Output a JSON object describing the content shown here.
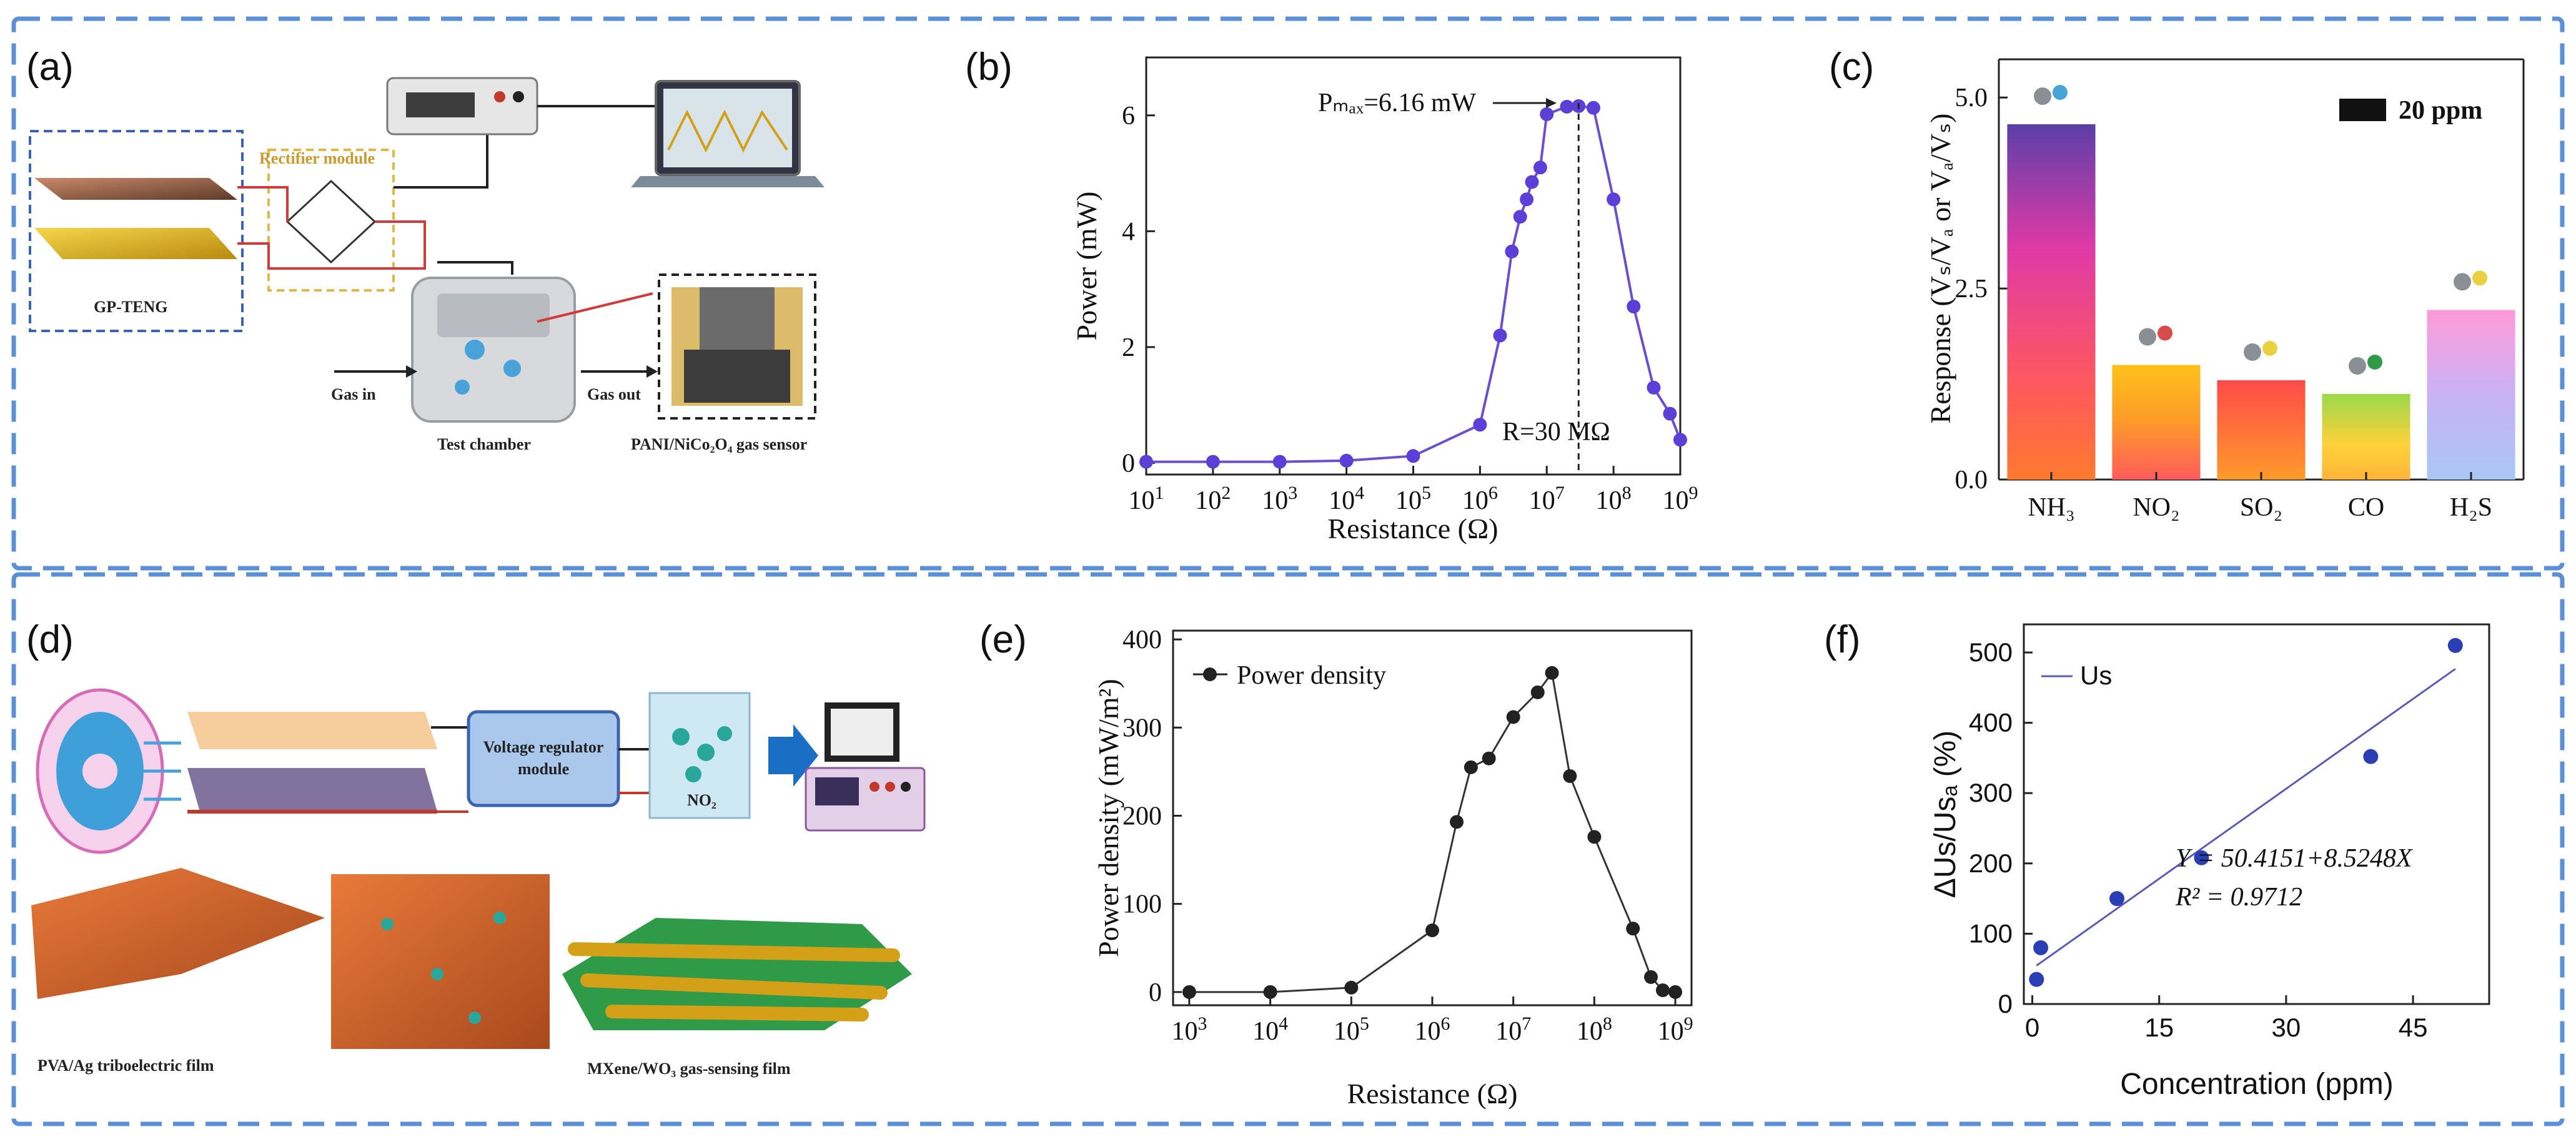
{
  "panels": {
    "a": {
      "label": "(a)",
      "texts": {
        "rectifier": "Rectifier module",
        "teng": "GP-TENG",
        "gas_in": "Gas in",
        "gas_out": "Gas out",
        "chamber": "Test chamber",
        "sensor": "PANI/NiCo₂O₄ gas sensor"
      }
    },
    "b": {
      "label": "(b)"
    },
    "c": {
      "label": "(c)"
    },
    "d": {
      "label": "(d)",
      "texts": {
        "regulator_1": "Voltage regulator",
        "regulator_2": "module",
        "no2": "NO₂",
        "pva": "PVA/Ag triboelectric film",
        "mxene": "MXene/WO₃ gas-sensing film"
      }
    },
    "e": {
      "label": "(e)"
    },
    "f": {
      "label": "(f)"
    }
  },
  "chart_data": [
    {
      "panel": "b",
      "type": "line",
      "xscale": "log",
      "x": [
        10,
        100,
        1000,
        10000,
        100000,
        1000000,
        2000000,
        3000000,
        4000000,
        5000000,
        6000000,
        8000000,
        10000000,
        20000000,
        30000000,
        50000000,
        100000000,
        200000000,
        400000000,
        700000000,
        1000000000
      ],
      "y": [
        0.02,
        0.02,
        0.02,
        0.04,
        0.12,
        0.66,
        2.2,
        3.65,
        4.25,
        4.55,
        4.85,
        5.1,
        6.02,
        6.15,
        6.16,
        6.13,
        4.55,
        2.7,
        1.3,
        0.85,
        0.4
      ],
      "xlabel": "Resistance (Ω)",
      "ylabel": "Power (mW)",
      "xticks": [
        "10^1",
        "10^2",
        "10^3",
        "10^4",
        "10^5",
        "10^6",
        "10^7",
        "10^8",
        "10^9"
      ],
      "yticks": [
        0,
        2,
        4,
        6
      ],
      "ylim": [
        -0.2,
        7
      ],
      "annotations": {
        "pmax": "Pₘₐₓ=6.16 mW",
        "r": "R=30 MΩ"
      }
    },
    {
      "panel": "c",
      "type": "bar",
      "categories": [
        "NH₃",
        "NO₂",
        "SO₂",
        "CO",
        "H₂S"
      ],
      "values": [
        4.65,
        1.5,
        1.3,
        1.12,
        2.22
      ],
      "ylabel": "Response (Vₛ/Vₐ or Vₐ/Vₛ)",
      "yticks": [
        "0.0",
        "2.5",
        "5.0"
      ],
      "ylim": [
        0,
        5.5
      ],
      "legend": "20 ppm"
    },
    {
      "panel": "e",
      "type": "line",
      "xscale": "log",
      "x": [
        1000,
        10000,
        100000,
        1000000,
        2000000,
        3000000,
        5000000,
        10000000,
        20000000,
        30000000,
        50000000,
        100000000,
        300000000,
        500000000,
        700000000,
        1000000000
      ],
      "y": [
        0,
        0,
        5,
        70,
        193,
        255,
        265,
        312,
        340,
        362,
        245,
        176,
        72,
        17,
        2,
        0
      ],
      "xlabel": "Resistance (Ω)",
      "ylabel": "Power density (mW/m²)",
      "xticks": [
        "10^3",
        "10^4",
        "10^5",
        "10^6",
        "10^7",
        "10^8",
        "10^9"
      ],
      "yticks": [
        0,
        100,
        200,
        300,
        400
      ],
      "ylim": [
        -15,
        410
      ],
      "legend": "Power density"
    },
    {
      "panel": "f",
      "type": "scatter",
      "x": [
        0.5,
        1,
        10,
        20,
        40,
        50
      ],
      "y": [
        35,
        80,
        150,
        208,
        352,
        510
      ],
      "fit": {
        "intercept": 50.4151,
        "slope": 8.5248,
        "x_range": [
          0.5,
          50
        ]
      },
      "xlabel": "Concentration (ppm)",
      "ylabel": "ΔUs/Usₐ (%)",
      "xticks": [
        0,
        15,
        30,
        45
      ],
      "yticks": [
        0,
        100,
        200,
        300,
        400,
        500
      ],
      "xlim": [
        -1,
        54
      ],
      "ylim": [
        0,
        540
      ],
      "legend": "Us",
      "equation": "Y = 50.4151+8.5248X",
      "r2": "R² = 0.9712"
    }
  ]
}
